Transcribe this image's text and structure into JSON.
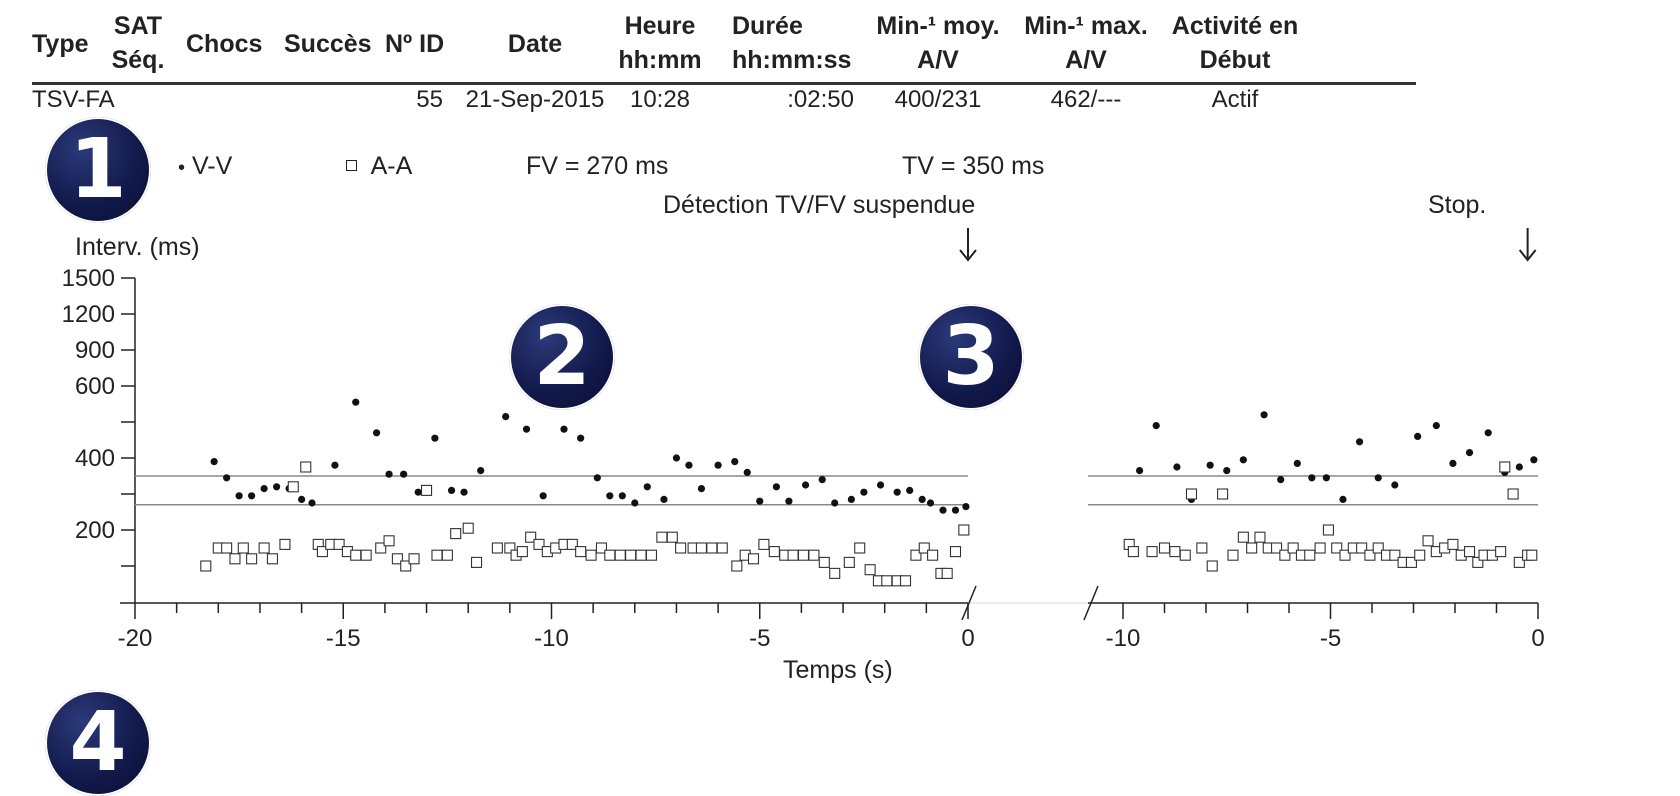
{
  "table": {
    "headers": [
      {
        "id": "type",
        "line1": "Type",
        "line2": ""
      },
      {
        "id": "sat",
        "line1": "SAT",
        "line2": "Séq."
      },
      {
        "id": "chocs",
        "line1": "Chocs",
        "line2": ""
      },
      {
        "id": "succes",
        "line1": "Succès",
        "line2": ""
      },
      {
        "id": "id",
        "line1": "Nº ID",
        "line2": ""
      },
      {
        "id": "date",
        "line1": "Date",
        "line2": ""
      },
      {
        "id": "heure",
        "line1": "Heure",
        "line2": "hh:mm"
      },
      {
        "id": "duree",
        "line1": "Durée",
        "line2": "hh:mm:ss"
      },
      {
        "id": "minmoy",
        "line1": "Min-¹ moy.",
        "line2": "A/V"
      },
      {
        "id": "minmax",
        "line1": "Min-¹ max.",
        "line2": "A/V"
      },
      {
        "id": "activite",
        "line1": "Activité en",
        "line2": "Début"
      }
    ],
    "row": {
      "type": "TSV-FA",
      "sat": "",
      "chocs": "",
      "succes": "",
      "id": "55",
      "date": "21-Sep-2015",
      "heure": "10:28",
      "duree": ":02:50",
      "minmoy": "400/231",
      "minmax": "462/---",
      "activite": "Actif"
    }
  },
  "badges": [
    "1",
    "2",
    "3",
    "4"
  ],
  "chart_data": {
    "type": "scatter",
    "legend": [
      {
        "name": "V-V",
        "marker": "dot"
      },
      {
        "name": "A-A",
        "marker": "open-square"
      }
    ],
    "thresholds": [
      {
        "label": "FV = 270 ms",
        "value": 270
      },
      {
        "label": "TV = 350 ms",
        "value": 350
      }
    ],
    "annotations": [
      {
        "text": "Détection TV/FV suspendue",
        "segment": "left",
        "x": 0
      },
      {
        "text": "Stop.",
        "segment": "right",
        "x": -0.25
      }
    ],
    "ylabel": "Interv. (ms)",
    "xlabel": "Temps (s)",
    "yticks": [
      200,
      400,
      600,
      900,
      1200,
      1500
    ],
    "segments": [
      {
        "id": "left",
        "xlim": [
          -20,
          0
        ],
        "xticks": [
          -20,
          -15,
          -10,
          -5,
          0
        ]
      },
      {
        "id": "right",
        "xlim": [
          -10,
          0
        ],
        "xticks": [
          -10,
          -5,
          0
        ]
      }
    ],
    "series": [
      {
        "name": "V-V",
        "segment": "left",
        "points": [
          [
            -18.1,
            390
          ],
          [
            -17.8,
            345
          ],
          [
            -17.5,
            295
          ],
          [
            -17.2,
            295
          ],
          [
            -16.9,
            315
          ],
          [
            -16.6,
            320
          ],
          [
            -16.3,
            315
          ],
          [
            -16.0,
            285
          ],
          [
            -15.75,
            275
          ],
          [
            -15.2,
            380
          ],
          [
            -14.7,
            555
          ],
          [
            -14.2,
            470
          ],
          [
            -13.9,
            355
          ],
          [
            -13.55,
            355
          ],
          [
            -13.2,
            305
          ],
          [
            -12.8,
            455
          ],
          [
            -12.4,
            310
          ],
          [
            -12.1,
            305
          ],
          [
            -11.7,
            365
          ],
          [
            -11.1,
            515
          ],
          [
            -10.6,
            480
          ],
          [
            -10.2,
            295
          ],
          [
            -9.7,
            480
          ],
          [
            -9.3,
            455
          ],
          [
            -8.9,
            345
          ],
          [
            -8.6,
            295
          ],
          [
            -8.3,
            295
          ],
          [
            -8.0,
            275
          ],
          [
            -7.7,
            320
          ],
          [
            -7.3,
            285
          ],
          [
            -7.0,
            400
          ],
          [
            -6.7,
            380
          ],
          [
            -6.4,
            315
          ],
          [
            -6.0,
            380
          ],
          [
            -5.6,
            390
          ],
          [
            -5.3,
            360
          ],
          [
            -5.0,
            280
          ],
          [
            -4.6,
            320
          ],
          [
            -4.3,
            280
          ],
          [
            -3.9,
            325
          ],
          [
            -3.5,
            340
          ],
          [
            -3.2,
            275
          ],
          [
            -2.8,
            285
          ],
          [
            -2.5,
            305
          ],
          [
            -2.1,
            325
          ],
          [
            -1.7,
            305
          ],
          [
            -1.4,
            310
          ],
          [
            -1.1,
            285
          ],
          [
            -0.9,
            275
          ],
          [
            -0.6,
            255
          ],
          [
            -0.3,
            255
          ],
          [
            -0.05,
            265
          ]
        ]
      },
      {
        "name": "A-A",
        "segment": "left",
        "points": [
          [
            -18.3,
            150
          ],
          [
            -18.0,
            175
          ],
          [
            -17.8,
            175
          ],
          [
            -17.6,
            160
          ],
          [
            -17.4,
            175
          ],
          [
            -17.2,
            160
          ],
          [
            -16.9,
            175
          ],
          [
            -16.7,
            160
          ],
          [
            -16.4,
            180
          ],
          [
            -16.2,
            320
          ],
          [
            -15.9,
            375
          ],
          [
            -15.6,
            180
          ],
          [
            -15.5,
            170
          ],
          [
            -15.3,
            180
          ],
          [
            -15.1,
            180
          ],
          [
            -14.9,
            170
          ],
          [
            -14.7,
            165
          ],
          [
            -14.45,
            165
          ],
          [
            -14.1,
            175
          ],
          [
            -13.9,
            185
          ],
          [
            -13.7,
            160
          ],
          [
            -13.5,
            150
          ],
          [
            -13.3,
            160
          ],
          [
            -13.0,
            310
          ],
          [
            -12.75,
            165
          ],
          [
            -12.5,
            165
          ],
          [
            -12.3,
            195
          ],
          [
            -12.0,
            205
          ],
          [
            -11.8,
            155
          ],
          [
            -11.3,
            175
          ],
          [
            -11.0,
            175
          ],
          [
            -10.85,
            165
          ],
          [
            -10.7,
            170
          ],
          [
            -10.5,
            190
          ],
          [
            -10.3,
            180
          ],
          [
            -10.1,
            170
          ],
          [
            -9.9,
            175
          ],
          [
            -9.7,
            180
          ],
          [
            -9.5,
            180
          ],
          [
            -9.3,
            170
          ],
          [
            -9.05,
            165
          ],
          [
            -8.8,
            175
          ],
          [
            -8.6,
            165
          ],
          [
            -8.35,
            165
          ],
          [
            -8.1,
            165
          ],
          [
            -7.85,
            165
          ],
          [
            -7.6,
            165
          ],
          [
            -7.35,
            190
          ],
          [
            -7.1,
            190
          ],
          [
            -6.9,
            175
          ],
          [
            -6.6,
            175
          ],
          [
            -6.4,
            175
          ],
          [
            -6.15,
            175
          ],
          [
            -5.9,
            175
          ],
          [
            -5.55,
            150
          ],
          [
            -5.35,
            165
          ],
          [
            -5.15,
            160
          ],
          [
            -4.9,
            180
          ],
          [
            -4.65,
            170
          ],
          [
            -4.4,
            165
          ],
          [
            -4.2,
            165
          ],
          [
            -3.95,
            165
          ],
          [
            -3.7,
            165
          ],
          [
            -3.45,
            155
          ],
          [
            -3.2,
            140
          ],
          [
            -2.85,
            155
          ],
          [
            -2.6,
            175
          ],
          [
            -2.35,
            145
          ],
          [
            -2.15,
            130
          ],
          [
            -1.95,
            130
          ],
          [
            -1.7,
            130
          ],
          [
            -1.5,
            130
          ],
          [
            -1.25,
            165
          ],
          [
            -1.05,
            175
          ],
          [
            -0.85,
            165
          ],
          [
            -0.65,
            140
          ],
          [
            -0.5,
            140
          ],
          [
            -0.3,
            170
          ],
          [
            -0.1,
            200
          ]
        ]
      },
      {
        "name": "V-V",
        "segment": "right",
        "points": [
          [
            -9.6,
            365
          ],
          [
            -9.2,
            490
          ],
          [
            -8.7,
            375
          ],
          [
            -8.35,
            285
          ],
          [
            -7.9,
            380
          ],
          [
            -7.5,
            365
          ],
          [
            -7.1,
            395
          ],
          [
            -6.6,
            520
          ],
          [
            -6.2,
            340
          ],
          [
            -5.8,
            385
          ],
          [
            -5.45,
            345
          ],
          [
            -5.1,
            345
          ],
          [
            -4.7,
            285
          ],
          [
            -4.3,
            445
          ],
          [
            -3.85,
            345
          ],
          [
            -3.45,
            325
          ],
          [
            -2.9,
            460
          ],
          [
            -2.45,
            490
          ],
          [
            -2.05,
            385
          ],
          [
            -1.65,
            415
          ],
          [
            -1.2,
            470
          ],
          [
            -0.8,
            360
          ],
          [
            -0.45,
            375
          ],
          [
            -0.1,
            395
          ]
        ]
      },
      {
        "name": "A-A",
        "segment": "right",
        "points": [
          [
            -9.85,
            180
          ],
          [
            -9.75,
            170
          ],
          [
            -9.3,
            170
          ],
          [
            -9.0,
            175
          ],
          [
            -8.75,
            170
          ],
          [
            -8.5,
            165
          ],
          [
            -8.35,
            300
          ],
          [
            -8.1,
            175
          ],
          [
            -7.85,
            150
          ],
          [
            -7.6,
            300
          ],
          [
            -7.35,
            165
          ],
          [
            -7.1,
            190
          ],
          [
            -6.9,
            175
          ],
          [
            -6.7,
            190
          ],
          [
            -6.5,
            175
          ],
          [
            -6.3,
            175
          ],
          [
            -6.1,
            165
          ],
          [
            -5.9,
            175
          ],
          [
            -5.7,
            165
          ],
          [
            -5.5,
            165
          ],
          [
            -5.25,
            175
          ],
          [
            -5.05,
            200
          ],
          [
            -4.85,
            175
          ],
          [
            -4.65,
            165
          ],
          [
            -4.45,
            175
          ],
          [
            -4.25,
            175
          ],
          [
            -4.05,
            165
          ],
          [
            -3.85,
            175
          ],
          [
            -3.65,
            165
          ],
          [
            -3.45,
            165
          ],
          [
            -3.25,
            155
          ],
          [
            -3.05,
            155
          ],
          [
            -2.85,
            165
          ],
          [
            -2.65,
            185
          ],
          [
            -2.45,
            170
          ],
          [
            -2.25,
            175
          ],
          [
            -2.05,
            180
          ],
          [
            -1.85,
            165
          ],
          [
            -1.65,
            170
          ],
          [
            -1.45,
            155
          ],
          [
            -1.3,
            165
          ],
          [
            -1.1,
            165
          ],
          [
            -0.9,
            170
          ],
          [
            -0.8,
            375
          ],
          [
            -0.6,
            300
          ],
          [
            -0.45,
            155
          ],
          [
            -0.25,
            165
          ],
          [
            -0.15,
            165
          ]
        ]
      }
    ]
  }
}
